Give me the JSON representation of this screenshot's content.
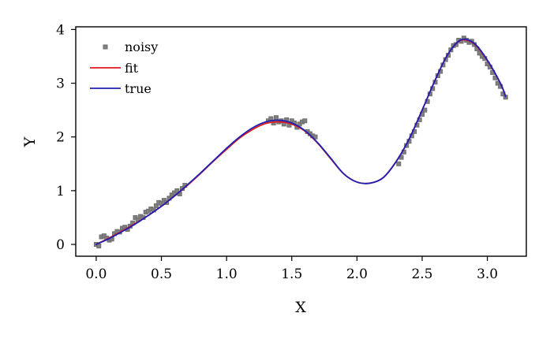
{
  "chart_data": {
    "type": "line",
    "title": "",
    "xlabel": "X",
    "ylabel": "Y",
    "xlim": [
      -0.157,
      3.299
    ],
    "ylim": [
      -0.22,
      4.05
    ],
    "xticks": [
      "0.0",
      "0.5",
      "1.0",
      "1.5",
      "2.0",
      "2.5",
      "3.0"
    ],
    "yticks": [
      "0",
      "1",
      "2",
      "3",
      "4"
    ],
    "grid": false,
    "legend_position": "top-left",
    "series": [
      {
        "name": "noisy",
        "kind": "scatter",
        "color": "#808080",
        "segments": [
          {
            "x": [
              0.0,
              0.02,
              0.04,
              0.06,
              0.08,
              0.1,
              0.12,
              0.14,
              0.16,
              0.18,
              0.2,
              0.22,
              0.24,
              0.26,
              0.28,
              0.3,
              0.32,
              0.34,
              0.36,
              0.38,
              0.4,
              0.42,
              0.44,
              0.46,
              0.48,
              0.5,
              0.52,
              0.54,
              0.56,
              0.58,
              0.6,
              0.62,
              0.64,
              0.66,
              0.68
            ],
            "y": [
              0.0,
              -0.03,
              0.14,
              0.16,
              0.12,
              0.08,
              0.1,
              0.2,
              0.24,
              0.23,
              0.3,
              0.32,
              0.28,
              0.34,
              0.4,
              0.5,
              0.46,
              0.52,
              0.5,
              0.6,
              0.62,
              0.66,
              0.64,
              0.72,
              0.78,
              0.76,
              0.82,
              0.78,
              0.86,
              0.92,
              0.96,
              1.0,
              0.94,
              1.04,
              1.1
            ]
          },
          {
            "x": [
              1.32,
              1.34,
              1.36,
              1.38,
              1.4,
              1.42,
              1.44,
              1.46,
              1.48,
              1.5,
              1.52,
              1.54,
              1.56,
              1.58,
              1.6,
              1.62,
              1.64,
              1.66,
              1.68
            ],
            "y": [
              2.3,
              2.34,
              2.26,
              2.36,
              2.28,
              2.3,
              2.24,
              2.32,
              2.22,
              2.3,
              2.26,
              2.18,
              2.24,
              2.28,
              2.3,
              2.1,
              2.06,
              2.02,
              2.0
            ]
          },
          {
            "x": [
              2.32,
              2.34,
              2.36,
              2.38,
              2.4,
              2.42,
              2.44,
              2.46,
              2.48,
              2.5,
              2.52,
              2.54,
              2.56,
              2.58,
              2.6,
              2.62,
              2.64,
              2.66,
              2.68,
              2.7,
              2.72,
              2.74,
              2.76,
              2.78,
              2.8,
              2.82,
              2.84,
              2.86,
              2.88,
              2.9,
              2.92,
              2.94,
              2.96,
              2.98,
              3.0,
              3.02,
              3.04,
              3.06,
              3.08,
              3.1,
              3.12,
              3.14
            ],
            "y": [
              1.5,
              1.62,
              1.72,
              1.84,
              1.92,
              2.02,
              2.1,
              2.22,
              2.32,
              2.42,
              2.5,
              2.66,
              2.8,
              2.9,
              3.02,
              3.14,
              3.22,
              3.34,
              3.44,
              3.52,
              3.62,
              3.7,
              3.72,
              3.8,
              3.78,
              3.84,
              3.8,
              3.76,
              3.78,
              3.72,
              3.64,
              3.56,
              3.5,
              3.46,
              3.36,
              3.3,
              3.2,
              3.1,
              3.0,
              2.94,
              2.8,
              2.74
            ]
          }
        ]
      },
      {
        "name": "fit",
        "kind": "line",
        "color": "#e31a1c",
        "x": [
          0.0,
          0.1,
          0.2,
          0.3,
          0.4,
          0.5,
          0.6,
          0.7,
          0.8,
          0.9,
          1.0,
          1.1,
          1.2,
          1.3,
          1.4,
          1.5,
          1.6,
          1.7,
          1.8,
          1.9,
          2.0,
          2.1,
          2.2,
          2.3,
          2.4,
          2.5,
          2.6,
          2.7,
          2.8,
          2.9,
          3.0,
          3.1,
          3.14
        ],
        "y": [
          0.0,
          0.12,
          0.25,
          0.39,
          0.54,
          0.71,
          0.9,
          1.1,
          1.32,
          1.55,
          1.77,
          1.98,
          2.14,
          2.25,
          2.28,
          2.24,
          2.11,
          1.88,
          1.59,
          1.31,
          1.16,
          1.14,
          1.24,
          1.54,
          1.96,
          2.5,
          3.06,
          3.55,
          3.8,
          3.73,
          3.42,
          3.0,
          2.76
        ]
      },
      {
        "name": "true",
        "kind": "line",
        "color": "#1f1fb4",
        "x": [
          0.0,
          0.1,
          0.2,
          0.3,
          0.4,
          0.5,
          0.6,
          0.7,
          0.8,
          0.9,
          1.0,
          1.1,
          1.2,
          1.3,
          1.4,
          1.5,
          1.6,
          1.7,
          1.8,
          1.9,
          2.0,
          2.1,
          2.2,
          2.3,
          2.4,
          2.5,
          2.6,
          2.7,
          2.8,
          2.9,
          3.0,
          3.1,
          3.14
        ],
        "y": [
          0.0,
          0.11,
          0.24,
          0.38,
          0.54,
          0.71,
          0.9,
          1.11,
          1.33,
          1.56,
          1.79,
          2.0,
          2.17,
          2.28,
          2.31,
          2.26,
          2.12,
          1.89,
          1.6,
          1.31,
          1.16,
          1.14,
          1.24,
          1.54,
          1.96,
          2.5,
          3.06,
          3.55,
          3.81,
          3.74,
          3.43,
          3.0,
          2.75
        ]
      }
    ]
  }
}
